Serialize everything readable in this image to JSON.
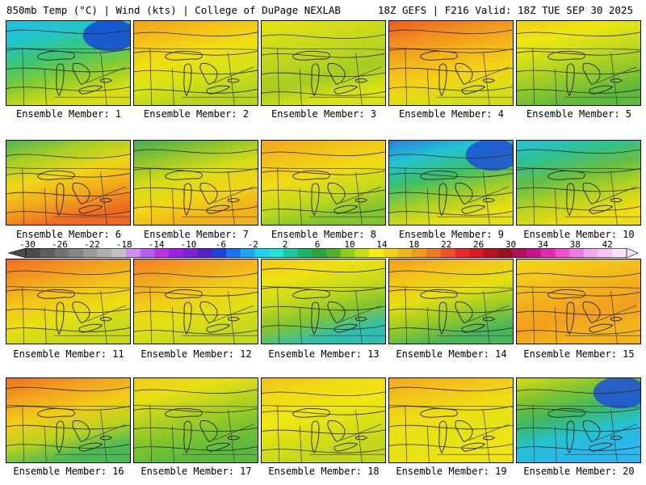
{
  "header": {
    "left": "850mb Temp (°C) | Wind (kts) | College of DuPage NEXLAB",
    "right": "18Z GEFS | F216 Valid: 18Z TUE SEP 30 2025"
  },
  "panel_label_prefix": "Ensemble Member: ",
  "members": [
    {
      "id": "1",
      "label": "Ensemble Member: 1",
      "colors": [
        "#27b8e6",
        "#22c7c9",
        "#3ec66e",
        "#8ccd2c",
        "#d9de12"
      ],
      "cold": "#1546d9"
    },
    {
      "id": "2",
      "label": "Ensemble Member: 2",
      "colors": [
        "#f0a11e",
        "#f3c119",
        "#f1df10",
        "#d7e215",
        "#b8d41e"
      ],
      "cold": null
    },
    {
      "id": "3",
      "label": "Ensemble Member: 3",
      "colors": [
        "#e9e115",
        "#d2dd19",
        "#bed61d",
        "#a5cb22",
        "#d9e314"
      ],
      "cold": null
    },
    {
      "id": "4",
      "label": "Ensemble Member: 4",
      "colors": [
        "#ef5a23",
        "#f18d1f",
        "#f4b41b",
        "#f3d415",
        "#d6df15"
      ],
      "cold": null
    },
    {
      "id": "5",
      "label": "Ensemble Member: 5",
      "colors": [
        "#f2cd17",
        "#eee612",
        "#c8db1a",
        "#94c92a",
        "#5fb93a"
      ],
      "cold": null
    },
    {
      "id": "6",
      "label": "Ensemble Member: 6",
      "colors": [
        "#4cb656",
        "#a8cf24",
        "#f0d615",
        "#f3a61d",
        "#ef6a22"
      ],
      "cold": null
    },
    {
      "id": "7",
      "label": "Ensemble Member: 7",
      "colors": [
        "#3fae55",
        "#8fc52b",
        "#d6dc16",
        "#f1d616",
        "#f1b11c"
      ],
      "cold": null
    },
    {
      "id": "8",
      "label": "Ensemble Member: 8",
      "colors": [
        "#f3a41d",
        "#f2c219",
        "#f1dc13",
        "#c5da1a",
        "#84c52d"
      ],
      "cold": null
    },
    {
      "id": "9",
      "label": "Ensemble Member: 9",
      "colors": [
        "#2a7fdc",
        "#23c4d3",
        "#3bbf6a",
        "#a5cd24",
        "#e7e014"
      ],
      "cold": "#1d4fd6"
    },
    {
      "id": "10",
      "label": "Ensemble Member: 10",
      "colors": [
        "#25c2e0",
        "#2fc190",
        "#67bf42",
        "#b7d21f",
        "#eddd12"
      ],
      "cold": null
    },
    {
      "id": "11",
      "label": "Ensemble Member: 11",
      "colors": [
        "#f06b22",
        "#f29a1f",
        "#f3c41a",
        "#e9df13",
        "#c9d91a"
      ],
      "cold": null
    },
    {
      "id": "12",
      "label": "Ensemble Member: 12",
      "colors": [
        "#f17d21",
        "#f2a51e",
        "#f3cc17",
        "#e3e014",
        "#c5d81c"
      ],
      "cold": null
    },
    {
      "id": "13",
      "label": "Ensemble Member: 13",
      "colors": [
        "#f3c61a",
        "#eee113",
        "#c8da1b",
        "#84c52d",
        "#2fbfb1"
      ],
      "cold": null
    },
    {
      "id": "14",
      "label": "Ensemble Member: 14",
      "colors": [
        "#f29c1f",
        "#f3c51a",
        "#e6df13",
        "#9ccc26",
        "#48b65a"
      ],
      "cold": null
    },
    {
      "id": "15",
      "label": "Ensemble Member: 15",
      "colors": [
        "#f0d715",
        "#f3c619",
        "#f3b01c",
        "#f39f1e",
        "#f3b51b"
      ],
      "cold": null
    },
    {
      "id": "16",
      "label": "Ensemble Member: 16",
      "colors": [
        "#ee7022",
        "#f2a31e",
        "#f2cd17",
        "#b9d31f",
        "#4cb957"
      ],
      "cold": null
    },
    {
      "id": "17",
      "label": "Ensemble Member: 17",
      "colors": [
        "#f2cb17",
        "#e8e013",
        "#b4d11f",
        "#7fc42e",
        "#5bb93e"
      ],
      "cold": null
    },
    {
      "id": "18",
      "label": "Ensemble Member: 18",
      "colors": [
        "#f3c019",
        "#f1dc14",
        "#efe612",
        "#d7df15",
        "#c1d61c"
      ],
      "cold": null
    },
    {
      "id": "19",
      "label": "Ensemble Member: 19",
      "colors": [
        "#f3a81d",
        "#f3c41a",
        "#f0dd13",
        "#e5e314",
        "#f0e312"
      ],
      "cold": null
    },
    {
      "id": "20",
      "label": "Ensemble Member: 20",
      "colors": [
        "#d6de15",
        "#83c52d",
        "#3eb85e",
        "#25c2d2",
        "#2bb7ee"
      ],
      "cold": "#1c50dc"
    }
  ],
  "colorbar": {
    "unit": "°C",
    "ticks": [
      "-30",
      "-26",
      "-22",
      "-18",
      "-14",
      "-10",
      "-6",
      "-2",
      "2",
      "6",
      "10",
      "14",
      "18",
      "22",
      "26",
      "30",
      "34",
      "38",
      "42"
    ],
    "colors": [
      "#4a4a4a",
      "#5e5e5e",
      "#727272",
      "#868686",
      "#9a9a9a",
      "#aeaeae",
      "#c2c2c2",
      "#d08ef0",
      "#b45ff0",
      "#c02ee6",
      "#9a22e6",
      "#7a22d6",
      "#5022c8",
      "#2240dc",
      "#1a74f0",
      "#1aa6f4",
      "#22d2f2",
      "#1ee6d2",
      "#19c99a",
      "#1bb366",
      "#2aa33c",
      "#55b028",
      "#8ccd1a",
      "#c4e014",
      "#f2f012",
      "#f2d216",
      "#f2b61a",
      "#f29a1e",
      "#f07a22",
      "#ee5224",
      "#e82a24",
      "#d81a22",
      "#b81420",
      "#961020",
      "#b01058",
      "#c8148a",
      "#e02ab6",
      "#f04ed4",
      "#f27ae4",
      "#f6a6ee",
      "#f8c6f4",
      "#fae2fa"
    ]
  }
}
